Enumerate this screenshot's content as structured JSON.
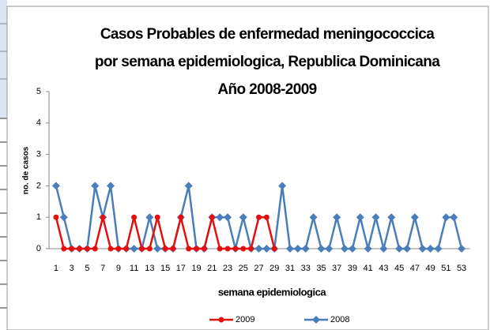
{
  "chart_data": {
    "type": "line",
    "title": [
      "Casos Probables de enfermedad meningococcica",
      "por semana epidemiologica, Republica Dominicana",
      "Año 2008-2009"
    ],
    "x_label": "semana epidemiologica",
    "y_label": "no. de casos",
    "categories": [
      1,
      null,
      3,
      null,
      5,
      null,
      7,
      null,
      9,
      null,
      11,
      null,
      13,
      null,
      15,
      null,
      17,
      null,
      19,
      null,
      21,
      null,
      23,
      null,
      25,
      null,
      27,
      null,
      29,
      null,
      31,
      null,
      33,
      null,
      35,
      null,
      37,
      null,
      39,
      null,
      41,
      null,
      43,
      null,
      45,
      null,
      47,
      null,
      49,
      null,
      51,
      null,
      53
    ],
    "ylim": [
      0,
      5
    ],
    "yticks": [
      0,
      1,
      2,
      3,
      4,
      5
    ],
    "grid": false,
    "legend": "bottom",
    "series": [
      {
        "name": "2009",
        "color": "#e31010",
        "marker": "circle",
        "values": [
          1,
          0,
          0,
          0,
          0,
          0,
          1,
          0,
          0,
          0,
          1,
          0,
          0,
          1,
          0,
          0,
          1,
          0,
          0,
          0,
          1,
          0,
          0,
          0,
          0,
          0,
          1,
          1,
          0,
          null,
          null,
          null,
          null,
          null,
          null,
          null,
          null,
          null,
          null,
          null,
          null,
          null,
          null,
          null,
          null,
          null,
          null,
          null,
          null,
          null,
          null,
          null,
          null
        ]
      },
      {
        "name": "2008",
        "color": "#4a7ebb",
        "marker": "diamond",
        "values": [
          2,
          1,
          0,
          0,
          0,
          2,
          1,
          2,
          0,
          0,
          0,
          0,
          1,
          0,
          0,
          0,
          1,
          2,
          0,
          0,
          1,
          1,
          1,
          0,
          1,
          0,
          0,
          0,
          0,
          2,
          0,
          0,
          0,
          1,
          0,
          0,
          1,
          0,
          0,
          1,
          0,
          1,
          0,
          1,
          0,
          0,
          1,
          0,
          0,
          0,
          1,
          1,
          0
        ]
      }
    ]
  }
}
